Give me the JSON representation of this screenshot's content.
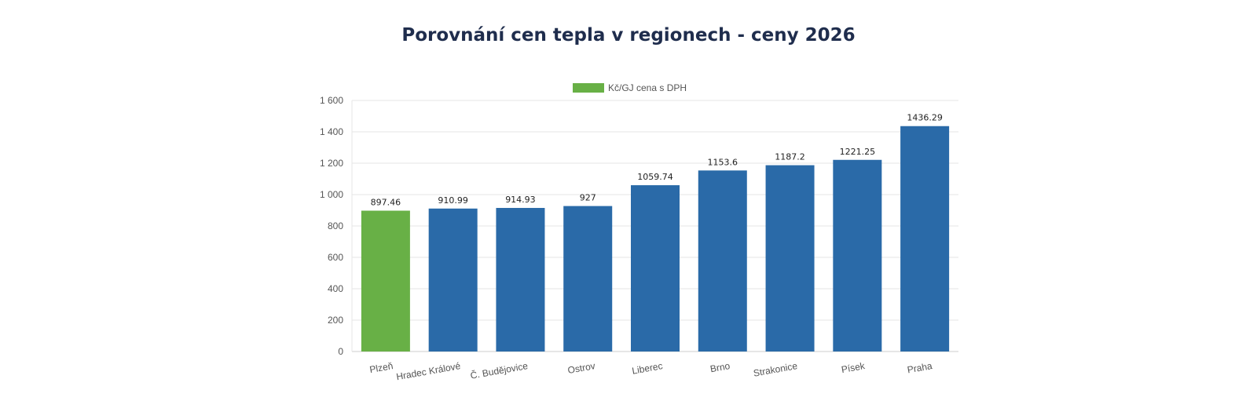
{
  "chart_data": {
    "type": "bar",
    "title": "Porovnání cen tepla v regionech - ceny 2026",
    "categories": [
      "Plzeň",
      "Hradec Králové",
      "Č. Budějovice",
      "Ostrov",
      "Liberec",
      "Brno",
      "Strakonice",
      "Písek",
      "Praha"
    ],
    "series": [
      {
        "name": "Kč/GJ cena s DPH",
        "values": [
          897.46,
          910.99,
          914.93,
          927,
          1059.74,
          1153.6,
          1187.2,
          1221.25,
          1436.29
        ]
      }
    ],
    "data_labels": [
      "897.46",
      "910.99",
      "914.93",
      "927",
      "1059.74",
      "1153.6",
      "1187.2",
      "1221.25",
      "1436.29"
    ],
    "yticks": [
      "0",
      "200",
      "400",
      "600",
      "800",
      "1 000",
      "1 200",
      "1 400",
      "1 600"
    ],
    "ylim": [
      0,
      1600
    ],
    "grid": true,
    "legend": "top",
    "colors": {
      "highlight": "#68b046",
      "default": "#2a6aa8"
    }
  }
}
